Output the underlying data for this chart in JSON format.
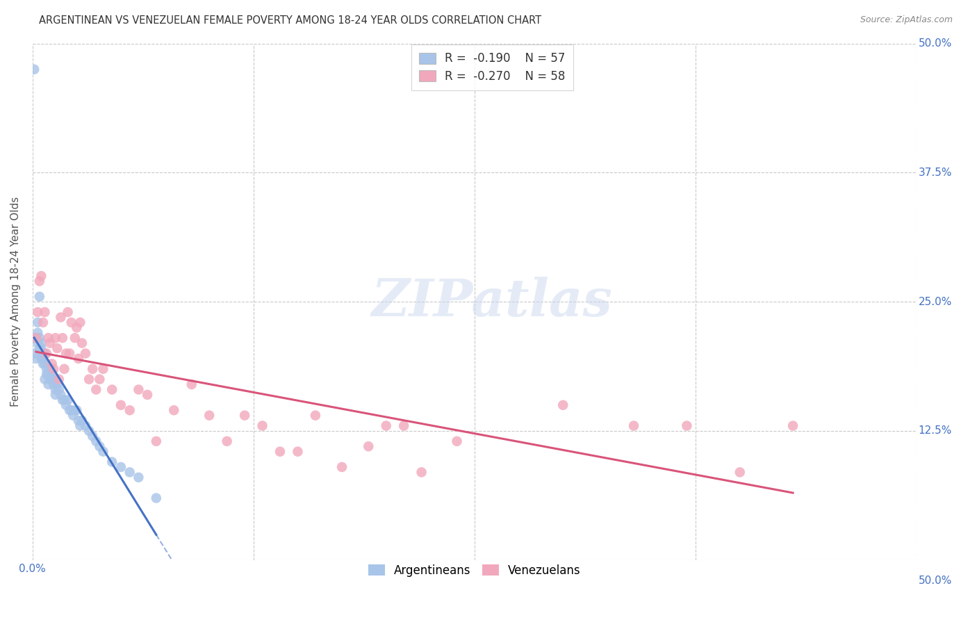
{
  "title": "ARGENTINEAN VS VENEZUELAN FEMALE POVERTY AMONG 18-24 YEAR OLDS CORRELATION CHART",
  "source": "Source: ZipAtlas.com",
  "ylabel": "Female Poverty Among 18-24 Year Olds",
  "xlim": [
    0.0,
    0.5
  ],
  "ylim": [
    0.0,
    0.5
  ],
  "xticks": [
    0.0,
    0.125,
    0.25,
    0.375,
    0.5
  ],
  "yticks": [
    0.0,
    0.125,
    0.25,
    0.375,
    0.5
  ],
  "xtick_labels_left": [
    "0.0%",
    "",
    "",
    "",
    ""
  ],
  "xtick_labels_right": "50.0%",
  "ytick_labels_right": [
    "",
    "12.5%",
    "25.0%",
    "37.5%",
    "50.0%"
  ],
  "background_color": "#ffffff",
  "grid_color": "#c8c8c8",
  "argentinean_color": "#a8c4e8",
  "venezuelan_color": "#f2a8bc",
  "argentinean_line_color": "#4472c4",
  "venezuelan_line_color": "#d9547a",
  "R_argentinean": -0.19,
  "N_argentinean": 57,
  "R_venezuelan": -0.27,
  "N_venezuelan": 58,
  "legend_label_arg": "Argentineans",
  "legend_label_ven": "Venezuelans",
  "argentinean_x": [
    0.001,
    0.001,
    0.002,
    0.002,
    0.003,
    0.003,
    0.003,
    0.004,
    0.004,
    0.004,
    0.005,
    0.005,
    0.005,
    0.006,
    0.006,
    0.006,
    0.007,
    0.007,
    0.007,
    0.008,
    0.008,
    0.009,
    0.009,
    0.01,
    0.01,
    0.011,
    0.011,
    0.012,
    0.012,
    0.013,
    0.013,
    0.014,
    0.015,
    0.016,
    0.017,
    0.018,
    0.019,
    0.02,
    0.021,
    0.022,
    0.023,
    0.024,
    0.025,
    0.026,
    0.027,
    0.028,
    0.03,
    0.032,
    0.034,
    0.036,
    0.038,
    0.04,
    0.045,
    0.05,
    0.055,
    0.06,
    0.07
  ],
  "argentinean_y": [
    0.475,
    0.2,
    0.215,
    0.195,
    0.23,
    0.21,
    0.22,
    0.205,
    0.215,
    0.255,
    0.195,
    0.205,
    0.21,
    0.195,
    0.2,
    0.19,
    0.19,
    0.2,
    0.175,
    0.185,
    0.18,
    0.18,
    0.17,
    0.175,
    0.185,
    0.175,
    0.18,
    0.17,
    0.175,
    0.165,
    0.16,
    0.17,
    0.165,
    0.16,
    0.155,
    0.155,
    0.15,
    0.155,
    0.145,
    0.145,
    0.14,
    0.145,
    0.145,
    0.135,
    0.13,
    0.135,
    0.13,
    0.125,
    0.12,
    0.115,
    0.11,
    0.105,
    0.095,
    0.09,
    0.085,
    0.08,
    0.06
  ],
  "venezuelan_x": [
    0.002,
    0.003,
    0.004,
    0.005,
    0.006,
    0.007,
    0.008,
    0.009,
    0.01,
    0.011,
    0.012,
    0.013,
    0.014,
    0.015,
    0.016,
    0.017,
    0.018,
    0.019,
    0.02,
    0.021,
    0.022,
    0.024,
    0.025,
    0.026,
    0.027,
    0.028,
    0.03,
    0.032,
    0.034,
    0.036,
    0.038,
    0.04,
    0.045,
    0.05,
    0.055,
    0.06,
    0.065,
    0.07,
    0.08,
    0.09,
    0.1,
    0.11,
    0.12,
    0.13,
    0.14,
    0.15,
    0.16,
    0.175,
    0.19,
    0.2,
    0.21,
    0.22,
    0.24,
    0.3,
    0.34,
    0.37,
    0.4,
    0.43
  ],
  "venezuelan_y": [
    0.215,
    0.24,
    0.27,
    0.275,
    0.23,
    0.24,
    0.2,
    0.215,
    0.21,
    0.19,
    0.185,
    0.215,
    0.205,
    0.175,
    0.235,
    0.215,
    0.185,
    0.2,
    0.24,
    0.2,
    0.23,
    0.215,
    0.225,
    0.195,
    0.23,
    0.21,
    0.2,
    0.175,
    0.185,
    0.165,
    0.175,
    0.185,
    0.165,
    0.15,
    0.145,
    0.165,
    0.16,
    0.115,
    0.145,
    0.17,
    0.14,
    0.115,
    0.14,
    0.13,
    0.105,
    0.105,
    0.14,
    0.09,
    0.11,
    0.13,
    0.13,
    0.085,
    0.115,
    0.15,
    0.13,
    0.13,
    0.085,
    0.13
  ],
  "arg_line_x_start": 0.001,
  "arg_line_x_end": 0.07,
  "arg_line_x_dash_end": 0.5,
  "ven_line_x_start": 0.002,
  "ven_line_x_end": 0.43
}
